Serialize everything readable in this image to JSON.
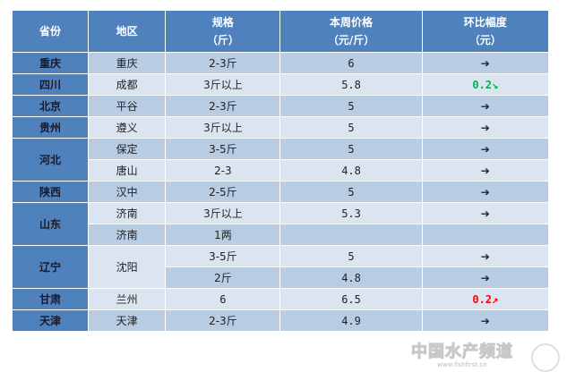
{
  "header": {
    "province": "省份",
    "region": "地区",
    "spec": "规格",
    "spec_unit": "（斤）",
    "price": "本周价格",
    "price_unit": "（元/斤）",
    "change": "环比幅度",
    "change_unit": "（元）"
  },
  "rows": [
    {
      "province": "重庆",
      "region": "重庆",
      "spec": "2-3斤",
      "price": "6",
      "change": "➔"
    },
    {
      "province": "四川",
      "region": "成都",
      "spec": "3斤以上",
      "price": "5.8",
      "change": "0.2↘"
    },
    {
      "province": "北京",
      "region": "平谷",
      "spec": "2-3斤",
      "price": "5",
      "change": "➔"
    },
    {
      "province": "贵州",
      "region": "遵义",
      "spec": "3斤以上",
      "price": "5",
      "change": "➔"
    },
    {
      "province": "河北",
      "region": "保定",
      "spec": "3-5斤",
      "price": "5",
      "change": "➔"
    },
    {
      "province": "",
      "region": "唐山",
      "spec": "2-3",
      "price": "4.8",
      "change": "➔"
    },
    {
      "province": "陕西",
      "region": "汉中",
      "spec": "2-5斤",
      "price": "5",
      "change": "➔"
    },
    {
      "province": "山东",
      "region": "济南",
      "spec": "3斤以上",
      "price": "5.3",
      "change": "➔"
    },
    {
      "province": "",
      "region": "济南",
      "spec": "1两",
      "price": "",
      "change": ""
    },
    {
      "province": "辽宁",
      "region": "沈阳",
      "spec": "3-5斤",
      "price": "5",
      "change": "➔"
    },
    {
      "province": "",
      "region": "",
      "spec": "2斤",
      "price": "4.8",
      "change": "➔"
    },
    {
      "province": "甘肃",
      "region": "兰州",
      "spec": "6",
      "price": "6.5",
      "change": "0.2↗"
    },
    {
      "province": "天津",
      "region": "天津",
      "spec": "2-3斤",
      "price": "4.9",
      "change": "➔"
    }
  ],
  "colors": {
    "header": "#4F81BD",
    "row_dark": "#B8CCE4",
    "row_light": "#DBE5F1",
    "down": "#00B050",
    "up": "#FF0000"
  },
  "watermark": {
    "title": "中国水产频道",
    "url": "www.fishfirst.cn"
  }
}
